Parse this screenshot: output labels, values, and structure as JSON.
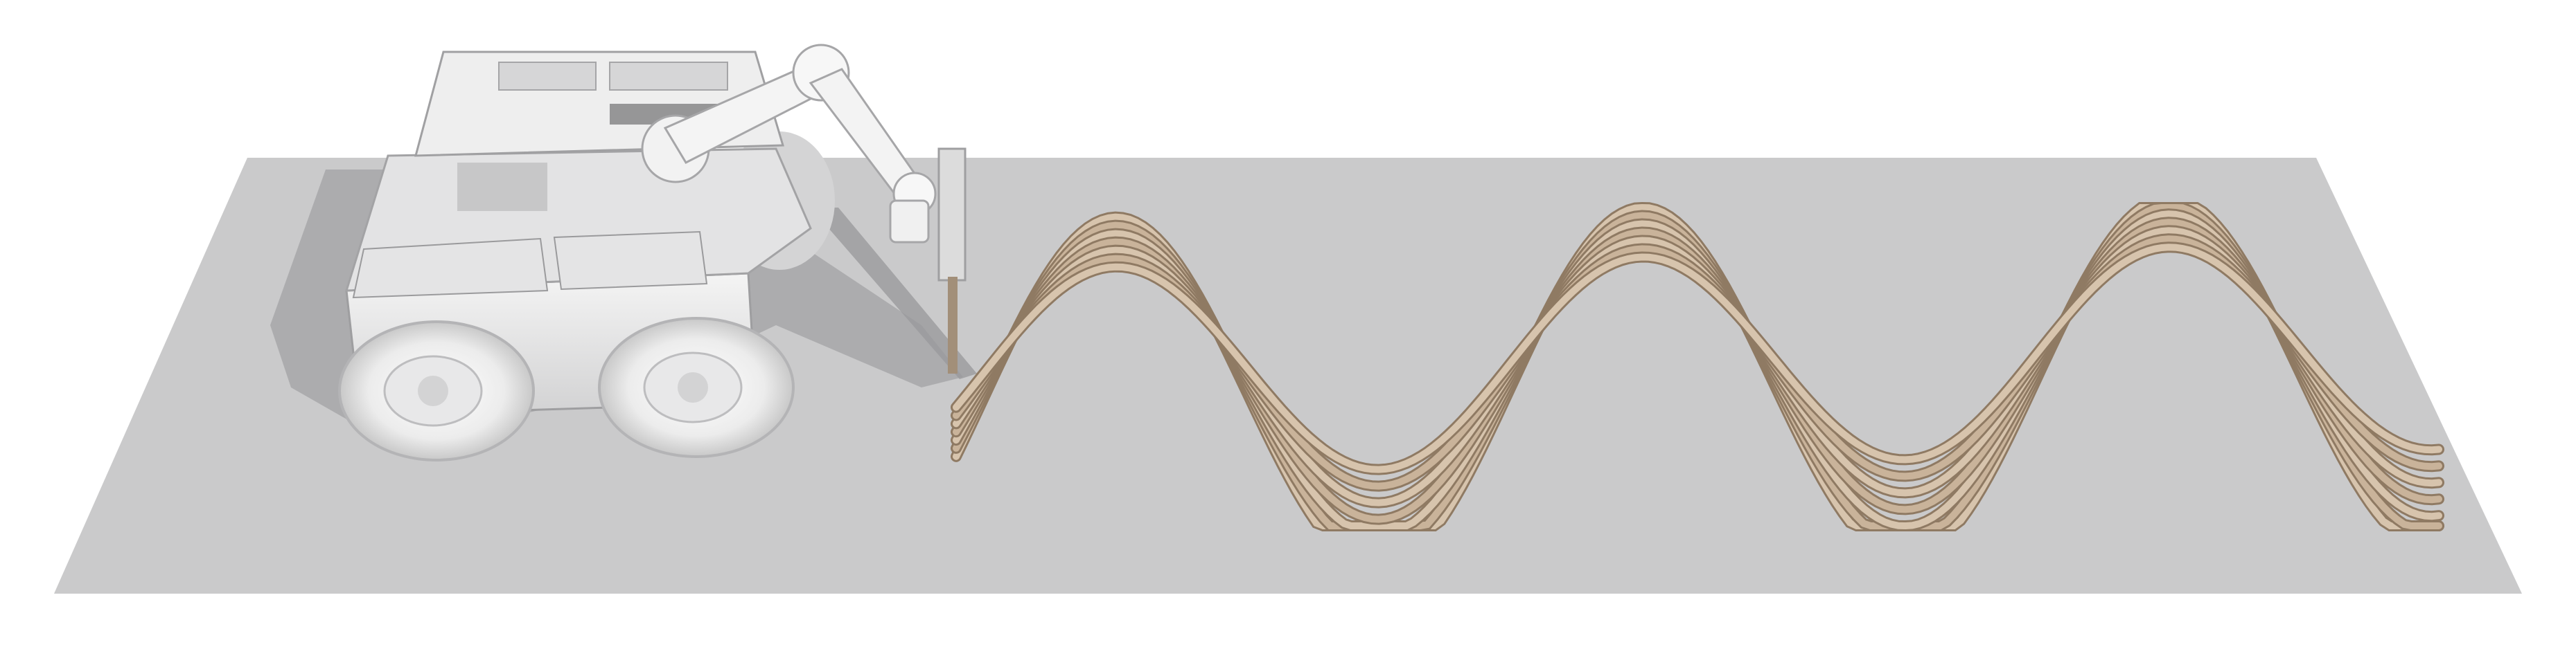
{
  "scene": {
    "colors": {
      "background": "#ffffff",
      "ground": "#cacacb",
      "ground_shadow": "#9c9c9e",
      "robot_body": "#eaeaea",
      "robot_shadow": "#b9b9bb",
      "robot_dark": "#6e6e70",
      "tire": "#f1f1f1",
      "printed_material": "#c4ad93",
      "printed_material_dark": "#8f7a63",
      "printed_material_light": "#dccab4"
    },
    "print_layers": 7
  }
}
